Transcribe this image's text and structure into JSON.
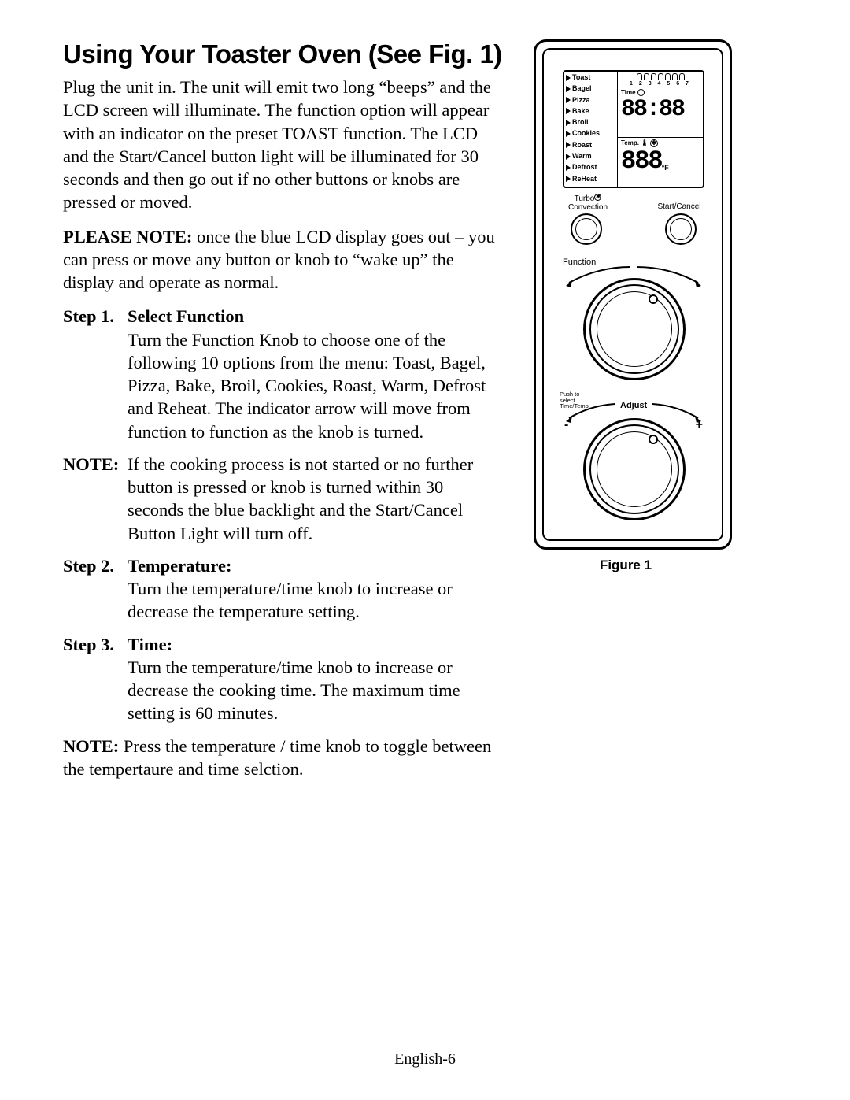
{
  "title": "Using Your Toaster Oven (See Fig. 1)",
  "intro": "Plug the unit in. The unit will emit two long “beeps” and the LCD screen will illuminate. The function option will appear with an indicator on the preset TOAST function.  The LCD and the Start/Cancel button light will be illuminated for 30 seconds and then go out if no other buttons or knobs are pressed or moved.",
  "note1_label": "PLEASE NOTE:",
  "note1_body": " once the blue LCD display goes out – you can press or move any button or knob to “wake up” the display and operate as normal.",
  "step1_label": "Step 1.",
  "step1_title": "Select Function",
  "step1_body": "Turn the Function Knob to choose one of the following 10 options from the menu: Toast, Bagel, Pizza, Bake, Broil, Cookies, Roast, Warm, Defrost and Reheat. The indicator arrow will move from function to function as the knob is turned.",
  "note2_label": "NOTE:",
  "note2_body": "If the cooking process is not started or no further button is pressed or knob is turned within 30 seconds the blue backlight and the Start/Cancel Button Light will turn off.",
  "step2_label": "Step 2.",
  "step2_title": "Temperature:",
  "step2_body": "Turn the temperature/time knob to increase or decrease the temperature setting.",
  "step3_label": "Step 3.",
  "step3_title": "Time:",
  "step3_body": "Turn the temperature/time knob to increase or decrease the cooking time. The maximum time setting is 60 minutes.",
  "note3_label": "NOTE:",
  "note3_body": " Press the temperature / time knob to toggle between the tempertaure and time selction.",
  "footer": "English-6",
  "figure": {
    "caption": "Figure 1",
    "functions": [
      "Toast",
      "Bagel",
      "Pizza",
      "Bake",
      "Broil",
      "Cookies",
      "Roast",
      "Warm",
      "Defrost",
      "ReHeat"
    ],
    "toast_numbers": "1 2 3 4 5 6 7",
    "time_label": "Time",
    "time_display": "88:88",
    "temp_label": "Temp.",
    "temp_display": "888",
    "temp_unit": "°F",
    "turbo_label": "Turbo",
    "convection_label": "Convection",
    "start_cancel_label": "Start/Cancel",
    "function_label": "Function",
    "push_label": "Push to\nselect\nTime/Temp.",
    "adjust_label": "Adjust",
    "minus": "-",
    "plus": "+"
  }
}
